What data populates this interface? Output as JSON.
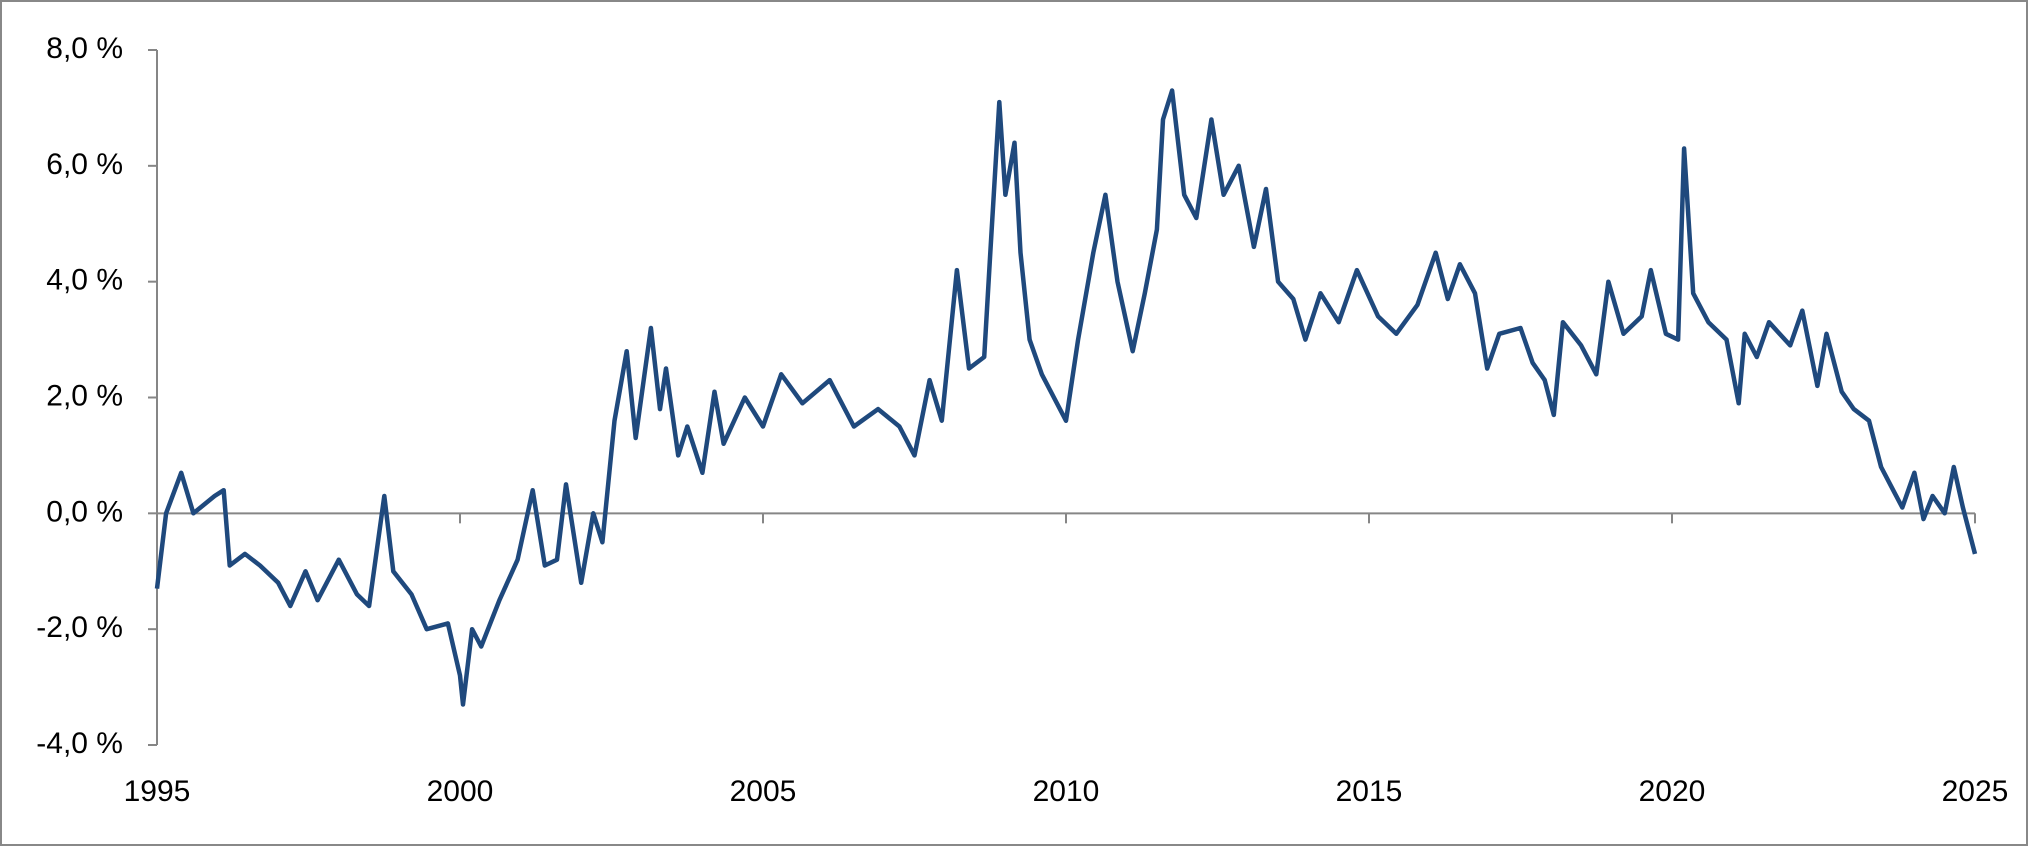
{
  "chart_data": {
    "type": "line",
    "color": "#1f497d",
    "x": [
      1995.0,
      1995.15,
      1995.4,
      1995.6,
      1995.95,
      1996.1,
      1996.2,
      1996.45,
      1996.7,
      1997.0,
      1997.2,
      1997.45,
      1997.65,
      1998.0,
      1998.3,
      1998.5,
      1998.75,
      1998.9,
      1999.2,
      1999.45,
      1999.8,
      2000.0,
      2000.05,
      2000.2,
      2000.35,
      2000.65,
      2000.95,
      2001.2,
      2001.4,
      2001.6,
      2001.75,
      2002.0,
      2002.2,
      2002.35,
      2002.55,
      2002.75,
      2002.9,
      2003.15,
      2003.3,
      2003.4,
      2003.6,
      2003.75,
      2004.0,
      2004.2,
      2004.35,
      2004.7,
      2005.0,
      2005.3,
      2005.65,
      2006.1,
      2006.5,
      2006.9,
      2007.25,
      2007.5,
      2007.75,
      2007.95,
      2008.2,
      2008.4,
      2008.65,
      2008.75,
      2008.9,
      2009.0,
      2009.15,
      2009.25,
      2009.4,
      2009.6,
      2009.8,
      2010.0,
      2010.2,
      2010.45,
      2010.65,
      2010.85,
      2011.1,
      2011.3,
      2011.5,
      2011.6,
      2011.75,
      2011.95,
      2012.15,
      2012.4,
      2012.6,
      2012.85,
      2013.1,
      2013.3,
      2013.5,
      2013.75,
      2013.95,
      2014.2,
      2014.5,
      2014.8,
      2015.15,
      2015.45,
      2015.8,
      2016.1,
      2016.3,
      2016.5,
      2016.75,
      2016.95,
      2017.15,
      2017.5,
      2017.7,
      2017.9,
      2018.05,
      2018.2,
      2018.5,
      2018.75,
      2018.95,
      2019.2,
      2019.5,
      2019.65,
      2019.9,
      2020.1,
      2020.2,
      2020.35,
      2020.6,
      2020.9,
      2021.1,
      2021.2,
      2021.4,
      2021.6,
      2021.95,
      2022.15,
      2022.4,
      2022.55,
      2022.8,
      2023.0,
      2023.25,
      2023.45,
      2023.65,
      2023.8,
      2024.0,
      2024.15,
      2024.3,
      2024.5,
      2024.65,
      2024.8,
      2025.0
    ],
    "values": [
      -1.3,
      0.0,
      0.7,
      0.0,
      0.3,
      0.4,
      -0.9,
      -0.7,
      -0.9,
      -1.2,
      -1.6,
      -1.0,
      -1.5,
      -0.8,
      -1.4,
      -1.6,
      0.3,
      -1.0,
      -1.4,
      -2.0,
      -1.9,
      -2.8,
      -3.3,
      -2.0,
      -2.3,
      -1.5,
      -0.8,
      0.4,
      -0.9,
      -0.8,
      0.5,
      -1.2,
      0.0,
      -0.5,
      1.6,
      2.8,
      1.3,
      3.2,
      1.8,
      2.5,
      1.0,
      1.5,
      0.7,
      2.1,
      1.2,
      2.0,
      1.5,
      2.4,
      1.9,
      2.3,
      1.5,
      1.8,
      1.5,
      1.0,
      2.3,
      1.6,
      4.2,
      2.5,
      2.7,
      4.5,
      7.1,
      5.5,
      6.4,
      4.5,
      3.0,
      2.4,
      2.0,
      1.6,
      3.0,
      4.5,
      5.5,
      4.0,
      2.8,
      3.8,
      4.9,
      6.8,
      7.3,
      5.5,
      5.1,
      6.8,
      5.5,
      6.0,
      4.6,
      5.6,
      4.0,
      3.7,
      3.0,
      3.8,
      3.3,
      4.2,
      3.4,
      3.1,
      3.6,
      4.5,
      3.7,
      4.3,
      3.8,
      2.5,
      3.1,
      3.2,
      2.6,
      2.3,
      1.7,
      3.3,
      2.9,
      2.4,
      4.0,
      3.1,
      3.4,
      4.2,
      3.1,
      3.0,
      6.3,
      3.8,
      3.3,
      3.0,
      1.9,
      3.1,
      2.7,
      3.3,
      2.9,
      3.5,
      2.2,
      3.1,
      2.1,
      1.8,
      1.6,
      0.8,
      0.4,
      0.1,
      0.7,
      -0.1,
      0.3,
      0.0,
      0.8,
      0.1,
      -0.7
    ],
    "xlim": [
      1995,
      2025
    ],
    "xticks": [
      1995,
      2000,
      2005,
      2010,
      2015,
      2020,
      2025
    ],
    "ylim": [
      -4,
      8
    ],
    "yticks": [
      {
        "value": -4,
        "label": "-4,0 %"
      },
      {
        "value": -2,
        "label": "-2,0 %"
      },
      {
        "value": 0,
        "label": "0,0 %"
      },
      {
        "value": 2,
        "label": "2,0 %"
      },
      {
        "value": 4,
        "label": "4,0 %"
      },
      {
        "value": 6,
        "label": "6,0 %"
      },
      {
        "value": 8,
        "label": "8,0 %"
      }
    ]
  }
}
